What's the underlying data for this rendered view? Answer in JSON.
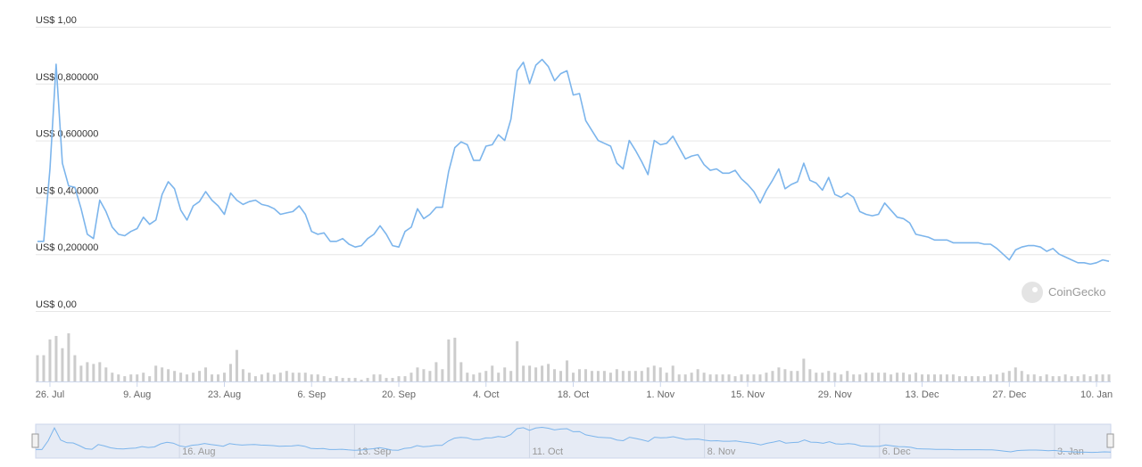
{
  "chart_data": {
    "type": "line",
    "watermark": "CoinGecko",
    "categories": [
      null,
      null,
      "26. Jul",
      null,
      null,
      null,
      null,
      null,
      null,
      null,
      null,
      null,
      null,
      null,
      null,
      null,
      "9. Aug",
      null,
      null,
      null,
      null,
      null,
      null,
      null,
      null,
      null,
      null,
      null,
      null,
      null,
      "23. Aug",
      null,
      null,
      null,
      null,
      null,
      null,
      null,
      null,
      null,
      null,
      null,
      null,
      null,
      "6. Sep",
      null,
      null,
      null,
      null,
      null,
      null,
      null,
      null,
      null,
      null,
      null,
      null,
      null,
      "20. Sep",
      null,
      null,
      null,
      null,
      null,
      null,
      null,
      null,
      null,
      null,
      null,
      null,
      null,
      "4. Oct",
      null,
      null,
      null,
      null,
      null,
      null,
      null,
      null,
      null,
      null,
      null,
      null,
      null,
      "18. Oct",
      null,
      null,
      null,
      null,
      null,
      null,
      null,
      null,
      null,
      null,
      null,
      null,
      null,
      "1. Nov",
      null,
      null,
      null,
      null,
      null,
      null,
      null,
      null,
      null,
      null,
      null,
      null,
      null,
      "15. Nov",
      null,
      null,
      null,
      null,
      null,
      null,
      null,
      null,
      null,
      null,
      null,
      null,
      null,
      "29. Nov",
      null,
      null,
      null,
      null,
      null,
      null,
      null,
      null,
      null,
      null,
      null,
      null,
      null,
      "13. Dec",
      null,
      null,
      null,
      null,
      null,
      null,
      null,
      null,
      null,
      null,
      null,
      null,
      null,
      "27. Dec",
      null,
      null,
      null,
      null,
      null,
      null,
      null,
      null,
      null,
      null,
      null,
      null,
      null,
      "10. Jan",
      null,
      null
    ],
    "price": {
      "color": "#7cb5ec",
      "values": [
        0.245,
        0.245,
        0.5,
        0.868,
        0.52,
        0.44,
        0.435,
        0.36,
        0.27,
        0.255,
        0.39,
        0.35,
        0.295,
        0.27,
        0.265,
        0.28,
        0.29,
        0.33,
        0.305,
        0.32,
        0.41,
        0.455,
        0.43,
        0.355,
        0.32,
        0.37,
        0.385,
        0.42,
        0.39,
        0.37,
        0.34,
        0.415,
        0.39,
        0.375,
        0.385,
        0.39,
        0.375,
        0.37,
        0.36,
        0.34,
        0.345,
        0.35,
        0.37,
        0.34,
        0.28,
        0.27,
        0.275,
        0.245,
        0.245,
        0.255,
        0.235,
        0.225,
        0.23,
        0.255,
        0.27,
        0.3,
        0.27,
        0.23,
        0.225,
        0.28,
        0.295,
        0.36,
        0.325,
        0.34,
        0.365,
        0.365,
        0.49,
        0.575,
        0.595,
        0.585,
        0.53,
        0.53,
        0.58,
        0.585,
        0.62,
        0.6,
        0.675,
        0.845,
        0.875,
        0.8,
        0.865,
        0.885,
        0.86,
        0.81,
        0.835,
        0.845,
        0.76,
        0.765,
        0.67,
        0.635,
        0.6,
        0.59,
        0.58,
        0.52,
        0.5,
        0.6,
        0.565,
        0.525,
        0.48,
        0.6,
        0.585,
        0.59,
        0.615,
        0.575,
        0.535,
        0.545,
        0.55,
        0.515,
        0.495,
        0.5,
        0.485,
        0.485,
        0.495,
        0.465,
        0.445,
        0.42,
        0.38,
        0.425,
        0.46,
        0.5,
        0.43,
        0.445,
        0.455,
        0.52,
        0.46,
        0.45,
        0.425,
        0.47,
        0.41,
        0.4,
        0.415,
        0.4,
        0.35,
        0.34,
        0.335,
        0.34,
        0.38,
        0.355,
        0.33,
        0.325,
        0.31,
        0.27,
        0.265,
        0.26,
        0.25,
        0.25,
        0.25,
        0.24,
        0.24,
        0.24,
        0.24,
        0.24,
        0.235,
        0.235,
        0.22,
        0.2,
        0.18,
        0.215,
        0.225,
        0.23,
        0.23,
        0.225,
        0.21,
        0.22,
        0.2,
        0.19,
        0.18,
        0.17,
        0.17,
        0.165,
        0.17,
        0.18,
        0.175
      ]
    },
    "volume": {
      "color": "#cccccc",
      "values": [
        30,
        30,
        48,
        52,
        38,
        55,
        30,
        18,
        22,
        20,
        22,
        16,
        10,
        8,
        6,
        8,
        8,
        10,
        6,
        18,
        16,
        14,
        12,
        10,
        8,
        10,
        12,
        16,
        8,
        8,
        10,
        20,
        36,
        14,
        10,
        6,
        8,
        10,
        8,
        10,
        12,
        10,
        10,
        10,
        8,
        8,
        6,
        4,
        6,
        4,
        4,
        4,
        2,
        4,
        8,
        8,
        4,
        4,
        6,
        6,
        10,
        16,
        14,
        12,
        22,
        14,
        48,
        50,
        22,
        10,
        8,
        10,
        12,
        18,
        10,
        16,
        12,
        46,
        18,
        18,
        16,
        18,
        20,
        14,
        12,
        24,
        10,
        14,
        14,
        12,
        12,
        12,
        10,
        14,
        12,
        12,
        12,
        12,
        16,
        18,
        16,
        10,
        18,
        8,
        8,
        10,
        14,
        10,
        8,
        8,
        8,
        8,
        6,
        8,
        8,
        8,
        8,
        10,
        12,
        16,
        14,
        12,
        12,
        26,
        14,
        10,
        10,
        12,
        10,
        8,
        12,
        8,
        8,
        10,
        10,
        10,
        10,
        8,
        10,
        10,
        8,
        10,
        8,
        8,
        8,
        8,
        8,
        8,
        6,
        6,
        6,
        6,
        6,
        8,
        8,
        10,
        12,
        16,
        12,
        8,
        8,
        6,
        8,
        6,
        6,
        8,
        6,
        6,
        8,
        6,
        8,
        8,
        8
      ]
    },
    "ylim": [
      0,
      1
    ],
    "yticks": [
      {
        "value": 0,
        "label": "US$ 0,00"
      },
      {
        "value": 0.2,
        "label": "US$ 0,200000"
      },
      {
        "value": 0.4,
        "label": "US$ 0,400000"
      },
      {
        "value": 0.6,
        "label": "US$ 0,600000"
      },
      {
        "value": 0.8,
        "label": "US$ 0,800000"
      },
      {
        "value": 1,
        "label": "US$ 1,00"
      }
    ],
    "grid": true,
    "navigator": {
      "xticks": [
        {
          "value": 23,
          "label": "16. Aug"
        },
        {
          "value": 51,
          "label": "13. Sep"
        },
        {
          "value": 79,
          "label": "11. Oct"
        },
        {
          "value": 107,
          "label": "8. Nov"
        },
        {
          "value": 135,
          "label": "6. Dec"
        },
        {
          "value": 163,
          "label": "3. Jan"
        }
      ]
    }
  }
}
